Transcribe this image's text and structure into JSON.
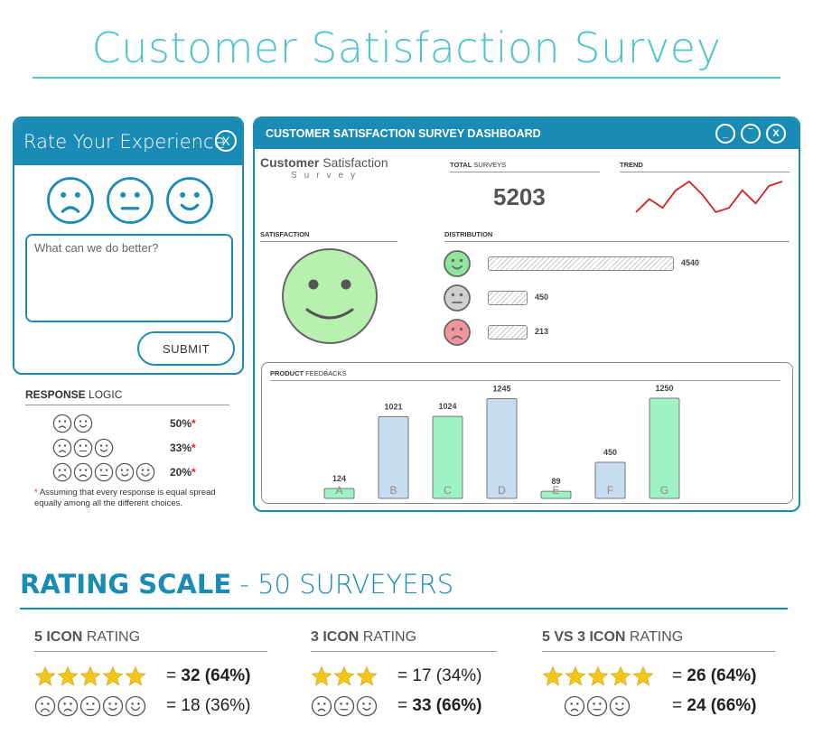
{
  "page_title": "Customer Satisfaction Survey",
  "rate_panel": {
    "title": "Rate Your Experience",
    "close_label": "X",
    "faces": [
      "sad",
      "neutral",
      "happy"
    ],
    "feedback_placeholder": "What can we do better?",
    "submit_label": "SUBMIT"
  },
  "response_logic": {
    "title_bold": "RESPONSE",
    "title_rest": " LOGIC",
    "rows": [
      {
        "faces": [
          "sad",
          "happy"
        ],
        "pct": "50%",
        "mark": "*"
      },
      {
        "faces": [
          "sad",
          "neutral",
          "happy"
        ],
        "pct": "33%",
        "mark": "*"
      },
      {
        "faces": [
          "very-sad",
          "sad",
          "neutral",
          "happy",
          "very-happy"
        ],
        "pct": "20%",
        "mark": "*"
      }
    ],
    "note_mark": "*",
    "note": " Assuming that every response is equal spread equally among all the different choices."
  },
  "dashboard": {
    "title": "CUSTOMER SATISFACTION SURVEY DASHBOARD",
    "window_buttons": [
      "_",
      "‾",
      "X"
    ],
    "brand_bold": "Customer",
    "brand_rest": " Satisfaction",
    "brand_sub": "Survey",
    "total_label_bold": "TOTAL",
    "total_label_rest": " SURVEYS",
    "total_value": "5203",
    "trend_label": "TREND",
    "trend_values": [
      3,
      6,
      4,
      8,
      10,
      7,
      3,
      4,
      8,
      5,
      9,
      10
    ],
    "satisfaction_label": "SATISFACTION",
    "distribution_label": "DISTRIBUTION",
    "distribution": [
      {
        "face": "happy",
        "value": 4540,
        "label": "4540",
        "color": "#8fe69a"
      },
      {
        "face": "neutral",
        "value": 450,
        "label": "450",
        "color": "#d0d0d0"
      },
      {
        "face": "sad",
        "value": 213,
        "label": "213",
        "color": "#f2959a"
      }
    ],
    "product_label_bold": "PRODUCT",
    "product_label_rest": " FEEDBACKS"
  },
  "chart_data": {
    "type": "bar",
    "title": "PRODUCT FEEDBACKS",
    "categories": [
      "A",
      "B",
      "C",
      "D",
      "E",
      "F",
      "G"
    ],
    "values": [
      124,
      1021,
      1024,
      1245,
      89,
      450,
      1250
    ],
    "value_labels": [
      "124",
      "1021",
      "1024",
      "1245",
      "89",
      "450",
      "1250"
    ],
    "colors": [
      "#9ef2c4",
      "#c8dcef",
      "#9ef2c4",
      "#c8dcef",
      "#9ef2c4",
      "#c8dcef",
      "#9ef2c4"
    ],
    "xlabel": "",
    "ylabel": "",
    "ylim": [
      0,
      1250
    ],
    "grid": false
  },
  "rating_scale": {
    "title_bold": "RATING SCALE",
    "title_rest": " - 50 SURVEYERS",
    "columns": [
      {
        "title_bold": "5 ICON",
        "title_rest": " RATING",
        "rows": [
          {
            "icons": "stars",
            "count": 5,
            "prefix": "= ",
            "num": "32",
            "pct": " (64%)",
            "bold": true
          },
          {
            "icons": "faces",
            "count": 5,
            "prefix": "= ",
            "num": "18",
            "pct": " (36%)",
            "bold": false
          }
        ]
      },
      {
        "title_bold": "3 ICON",
        "title_rest": " RATING",
        "rows": [
          {
            "icons": "stars",
            "count": 3,
            "prefix": "= ",
            "num": "17",
            "pct": " (34%)",
            "bold": false
          },
          {
            "icons": "faces",
            "count": 3,
            "prefix": "= ",
            "num": "33",
            "pct": " (66%)",
            "bold": true
          }
        ]
      },
      {
        "title_bold": "5 VS 3 ICON",
        "title_rest": " RATING",
        "rows": [
          {
            "icons": "stars",
            "count": 5,
            "prefix": "= ",
            "num": "26",
            "pct": " (64%)",
            "bold": true
          },
          {
            "icons": "faces",
            "count": 3,
            "prefix": "= ",
            "num": "24",
            "pct": " (66%)",
            "bold": true
          }
        ]
      }
    ]
  },
  "colors": {
    "brand": "#1a8bb5",
    "title": "#4fc3d0",
    "trend_line": "#d42020",
    "satisfaction_face": "#b8f0b0",
    "star": "#f5c518"
  }
}
